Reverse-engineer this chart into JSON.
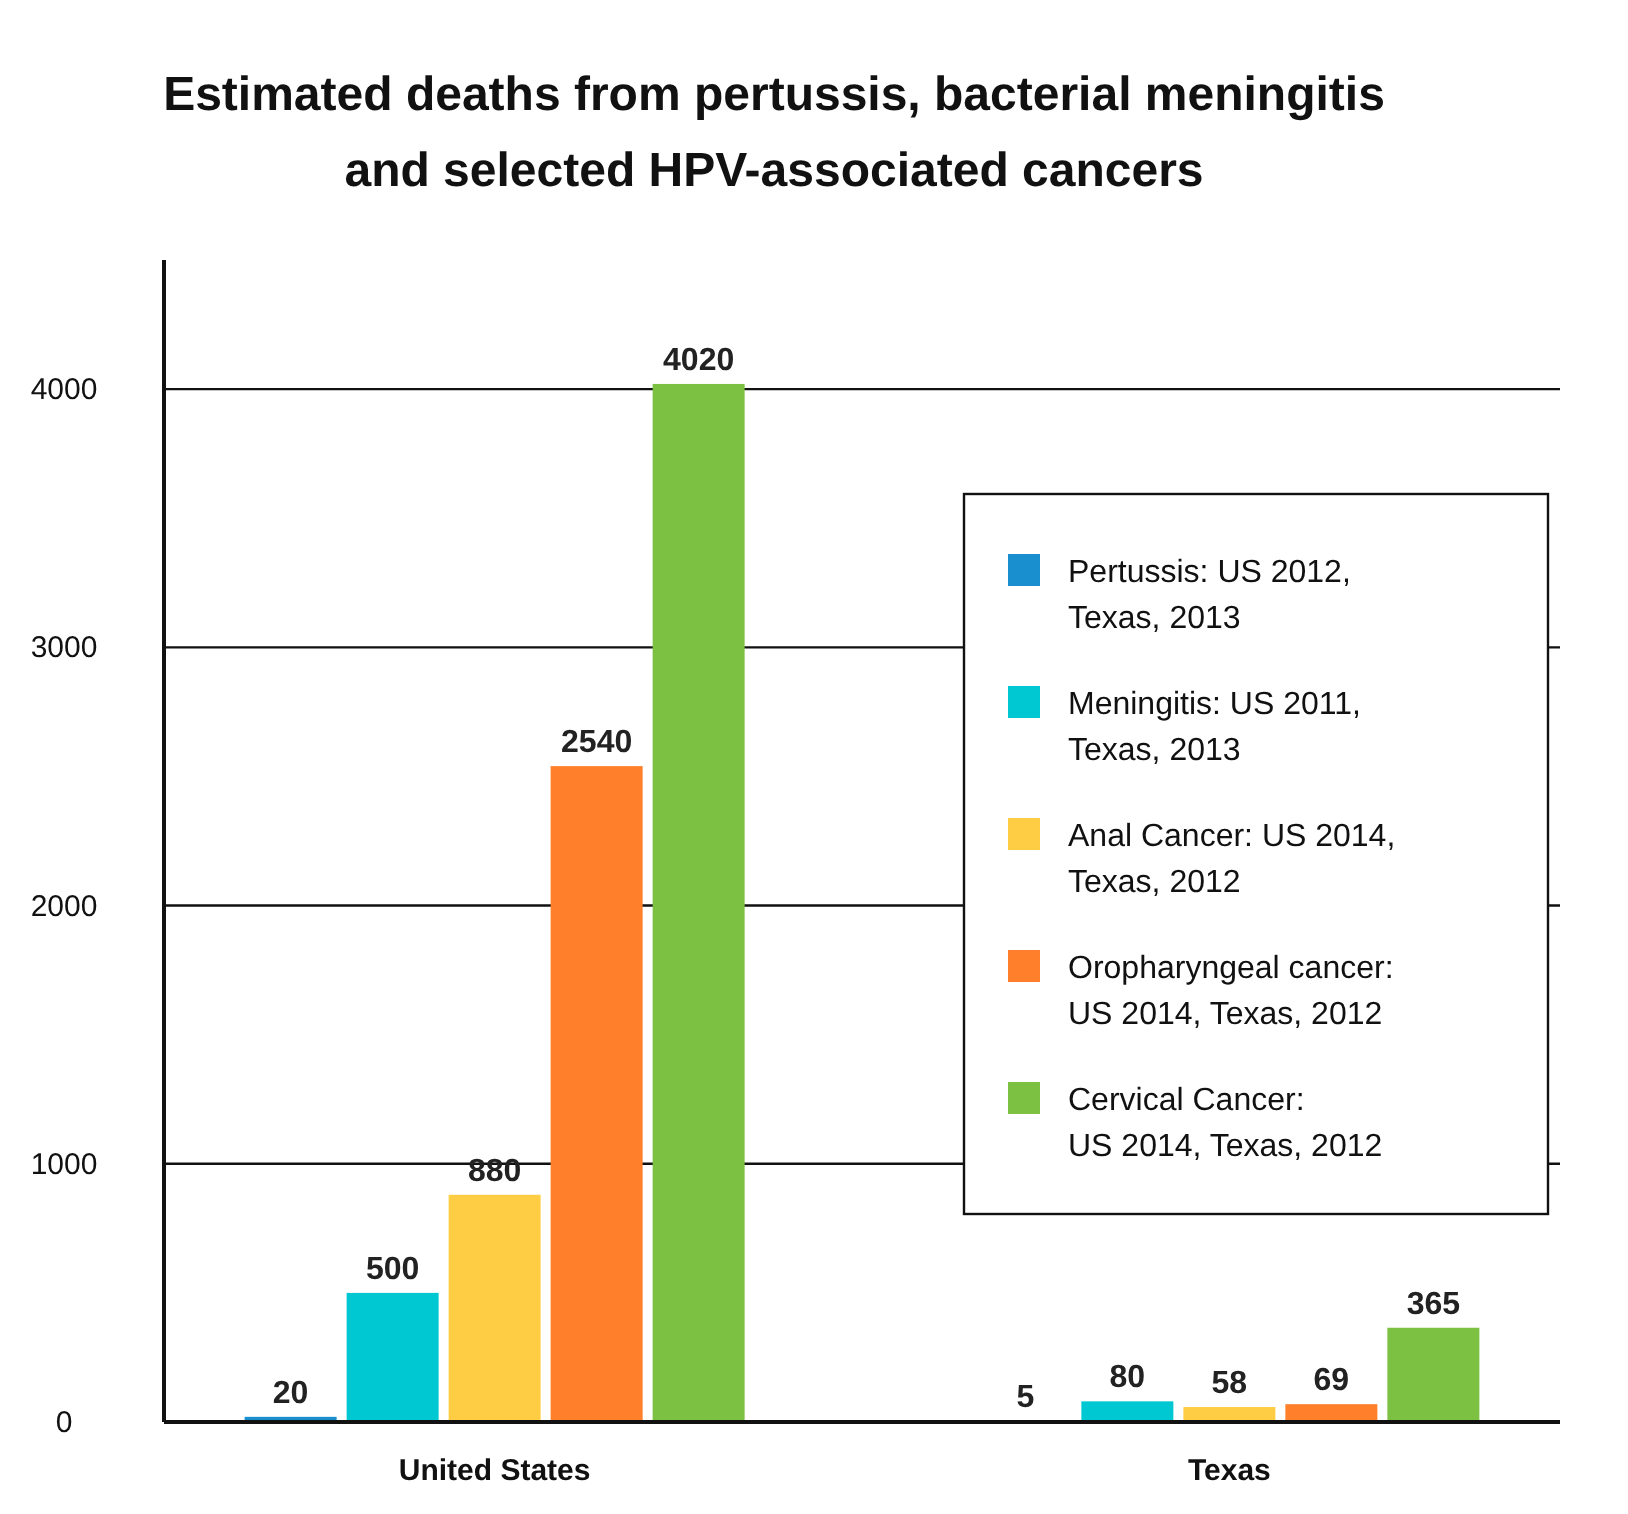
{
  "chart_data": {
    "type": "bar",
    "title": "Estimated deaths from pertussis, bacterial meningitis and selected HPV-associated cancers",
    "categories": [
      "United States",
      "Texas"
    ],
    "series": [
      {
        "name": "Pertussis: US 2012,\nTexas, 2013",
        "color": "#1a8fd0",
        "values": [
          20,
          5
        ]
      },
      {
        "name": "Meningitis: US 2011,\nTexas, 2013",
        "color": "#00c8d2",
        "values": [
          500,
          80
        ]
      },
      {
        "name": "Anal Cancer: US 2014,\nTexas, 2012",
        "color": "#ffcd44",
        "values": [
          880,
          58
        ]
      },
      {
        "name": "Oropharyngeal cancer:\nUS 2014, Texas, 2012",
        "color": "#ff7f2a",
        "values": [
          2540,
          69
        ]
      },
      {
        "name": "Cervical Cancer:\nUS 2014, Texas, 2012",
        "color": "#7dc142",
        "values": [
          4020,
          365
        ]
      }
    ],
    "ylim": [
      0,
      4500
    ],
    "yticks": [
      0,
      1000,
      2000,
      3000,
      4000
    ],
    "grid": "y",
    "legend": "right",
    "data_labels": true
  }
}
